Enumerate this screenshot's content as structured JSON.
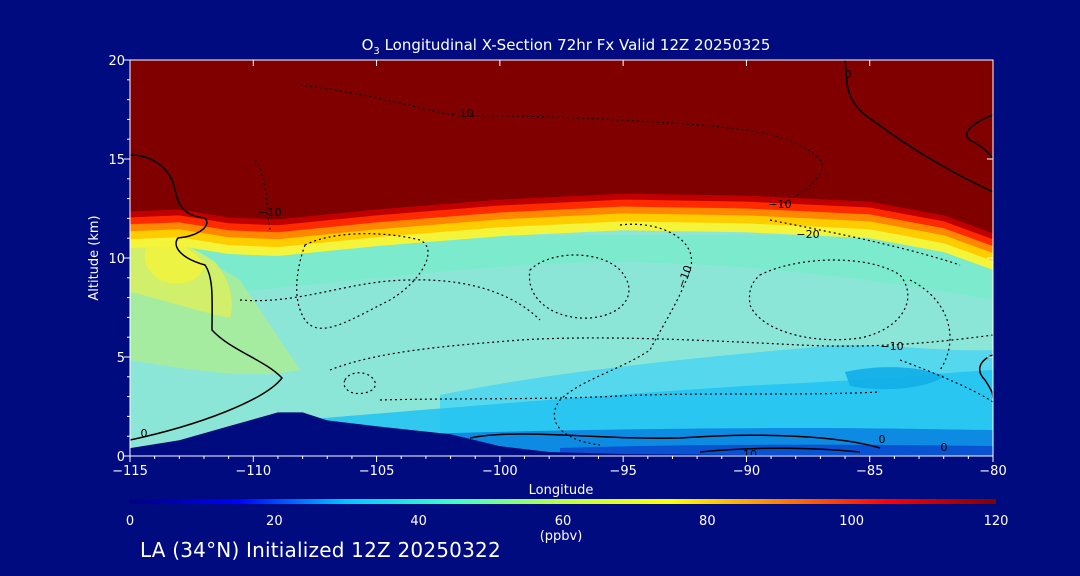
{
  "chart_data": {
    "type": "heatmap",
    "title": "O3 Longitudinal X-Section 72hr  Fx Valid 12Z 20250325",
    "title_parts": {
      "pre": "O",
      "sub": "3",
      "post": " Longitudinal X-Section 72hr  Fx Valid 12Z 20250325"
    },
    "xlabel": "Longitude",
    "ylabel": "Altitude (km)",
    "xlim": [
      -115,
      -80
    ],
    "ylim": [
      0,
      20
    ],
    "x_ticks": [
      -115,
      -110,
      -105,
      -100,
      -95,
      -90,
      -85,
      -80
    ],
    "x_tick_labels": [
      "−115",
      "−110",
      "−105",
      "−100",
      "−95",
      "−90",
      "−85",
      "−80"
    ],
    "y_ticks": [
      0,
      5,
      10,
      15,
      20
    ],
    "y_tick_labels": [
      "0",
      "5",
      "10",
      "15",
      "20"
    ],
    "colorbar": {
      "label": "(ppbv)",
      "range": [
        0,
        120
      ],
      "ticks": [
        0,
        20,
        40,
        60,
        80,
        100,
        120
      ],
      "tick_labels": [
        "0",
        "20",
        "40",
        "60",
        "80",
        "100",
        "120"
      ]
    },
    "colormap_stops": [
      "#000080",
      "#0000ff",
      "#00c8ff",
      "#40ffc0",
      "#c0ff40",
      "#ffff00",
      "#ff8000",
      "#ff0000",
      "#800000"
    ],
    "tropopause_km": [
      {
        "lon": -115,
        "alt": 11.4
      },
      {
        "lon": -113,
        "alt": 11.5
      },
      {
        "lon": -111,
        "alt": 11.1
      },
      {
        "lon": -109,
        "alt": 11.0
      },
      {
        "lon": -105,
        "alt": 11.5
      },
      {
        "lon": -100,
        "alt": 12.0
      },
      {
        "lon": -95,
        "alt": 12.3
      },
      {
        "lon": -90,
        "alt": 12.2
      },
      {
        "lon": -85,
        "alt": 11.9
      },
      {
        "lon": -82,
        "alt": 11.2
      },
      {
        "lon": -80,
        "alt": 10.3
      }
    ],
    "terrain_km": [
      {
        "lon": -115,
        "alt": 0.4
      },
      {
        "lon": -113,
        "alt": 0.8
      },
      {
        "lon": -111,
        "alt": 1.5
      },
      {
        "lon": -109,
        "alt": 2.2
      },
      {
        "lon": -108,
        "alt": 2.2
      },
      {
        "lon": -107,
        "alt": 1.8
      },
      {
        "lon": -105,
        "alt": 1.5
      },
      {
        "lon": -102,
        "alt": 1.1
      },
      {
        "lon": -100,
        "alt": 0.5
      },
      {
        "lon": -98,
        "alt": 0.2
      },
      {
        "lon": -95,
        "alt": 0.1
      },
      {
        "lon": -90,
        "alt": 0.05
      },
      {
        "lon": -85,
        "alt": 0.05
      },
      {
        "lon": -80,
        "alt": 0.0
      }
    ],
    "contour_labels": [
      "−10",
      "−10",
      "−20",
      "−10",
      "−10",
      "−10",
      "0",
      "0",
      "0",
      "0",
      "10"
    ]
  },
  "footer": {
    "caption": "LA (34°N) Initialized 12Z 20250322"
  },
  "colors": {
    "background": "#000b80",
    "text": "#ffffff",
    "contour": "#000000"
  }
}
